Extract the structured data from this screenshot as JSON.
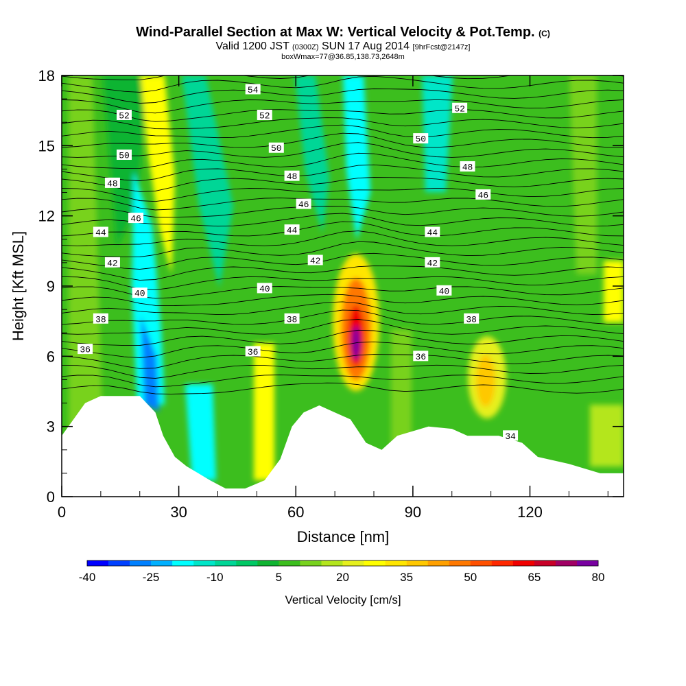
{
  "header": {
    "title_main": "Wind-Parallel Section at Max W: Vertical Velocity & Pot.Temp.",
    "title_tag": "(C)",
    "subtitle_a": "Valid 1200 JST",
    "subtitle_b": "(0300Z)",
    "subtitle_c": "SUN 17 Aug 2014",
    "subtitle_d": "[9hrFcst@2147z]",
    "subtitle_line2": "boxWmax=77@36.85,138.73,2648m"
  },
  "chart_data": {
    "type": "heatmap",
    "xlabel": "Distance [nm]",
    "ylabel": "Height [Kft MSL]",
    "xlim": [
      0,
      144
    ],
    "ylim": [
      0,
      18
    ],
    "x_ticks": [
      0,
      30,
      60,
      90,
      120
    ],
    "y_ticks": [
      0,
      3,
      6,
      9,
      12,
      15,
      18
    ],
    "colorbar": {
      "label": "Vertical Velocity [cm/s]",
      "tick_labels": [
        "-40",
        "-25",
        "-10",
        "5",
        "20",
        "35",
        "50",
        "65",
        "80"
      ],
      "min": -40,
      "max": 80,
      "step": 5,
      "colors": [
        "#0000ff",
        "#0040ff",
        "#0080ff",
        "#00b0ff",
        "#00ffff",
        "#00e6c8",
        "#00d696",
        "#00c864",
        "#10b432",
        "#3cbe1e",
        "#78d21e",
        "#b4e61e",
        "#e6f01e",
        "#ffff00",
        "#ffe600",
        "#ffc800",
        "#ffa000",
        "#ff7800",
        "#ff5000",
        "#ff2800",
        "#f00000",
        "#c80028",
        "#a00064",
        "#7800a0"
      ]
    },
    "terrain_profile": [
      {
        "x": 0,
        "h": 2.6
      },
      {
        "x": 3,
        "h": 3.3
      },
      {
        "x": 6,
        "h": 4.0
      },
      {
        "x": 10,
        "h": 4.3
      },
      {
        "x": 15,
        "h": 4.3
      },
      {
        "x": 20,
        "h": 4.3
      },
      {
        "x": 24,
        "h": 3.6
      },
      {
        "x": 26,
        "h": 2.6
      },
      {
        "x": 29,
        "h": 1.7
      },
      {
        "x": 32,
        "h": 1.3
      },
      {
        "x": 35,
        "h": 1.0
      },
      {
        "x": 38,
        "h": 0.7
      },
      {
        "x": 42,
        "h": 0.35
      },
      {
        "x": 47,
        "h": 0.35
      },
      {
        "x": 52,
        "h": 0.7
      },
      {
        "x": 56,
        "h": 1.6
      },
      {
        "x": 59,
        "h": 3.0
      },
      {
        "x": 62,
        "h": 3.6
      },
      {
        "x": 66,
        "h": 3.9
      },
      {
        "x": 70,
        "h": 3.6
      },
      {
        "x": 74,
        "h": 3.3
      },
      {
        "x": 78,
        "h": 2.3
      },
      {
        "x": 82,
        "h": 2.0
      },
      {
        "x": 86,
        "h": 2.6
      },
      {
        "x": 94,
        "h": 3.0
      },
      {
        "x": 100,
        "h": 2.9
      },
      {
        "x": 104,
        "h": 2.6
      },
      {
        "x": 112,
        "h": 2.6
      },
      {
        "x": 118,
        "h": 2.3
      },
      {
        "x": 122,
        "h": 1.7
      },
      {
        "x": 130,
        "h": 1.4
      },
      {
        "x": 138,
        "h": 1.0
      },
      {
        "x": 144,
        "h": 1.0
      }
    ],
    "theta_labels": [
      {
        "value": "54",
        "x": 49,
        "h": 17.4
      },
      {
        "value": "52",
        "x": 16,
        "h": 16.3
      },
      {
        "value": "52",
        "x": 52,
        "h": 16.3
      },
      {
        "value": "52",
        "x": 102,
        "h": 16.6
      },
      {
        "value": "50",
        "x": 16,
        "h": 14.6
      },
      {
        "value": "50",
        "x": 55,
        "h": 14.9
      },
      {
        "value": "50",
        "x": 92,
        "h": 15.3
      },
      {
        "value": "48",
        "x": 13,
        "h": 13.4
      },
      {
        "value": "48",
        "x": 59,
        "h": 13.7
      },
      {
        "value": "48",
        "x": 104,
        "h": 14.1
      },
      {
        "value": "46",
        "x": 19,
        "h": 11.9
      },
      {
        "value": "46",
        "x": 62,
        "h": 12.5
      },
      {
        "value": "46",
        "x": 108,
        "h": 12.9
      },
      {
        "value": "44",
        "x": 10,
        "h": 11.3
      },
      {
        "value": "44",
        "x": 59,
        "h": 11.4
      },
      {
        "value": "44",
        "x": 95,
        "h": 11.3
      },
      {
        "value": "42",
        "x": 13,
        "h": 10.0
      },
      {
        "value": "42",
        "x": 65,
        "h": 10.1
      },
      {
        "value": "42",
        "x": 95,
        "h": 10.0
      },
      {
        "value": "40",
        "x": 20,
        "h": 8.7
      },
      {
        "value": "40",
        "x": 52,
        "h": 8.9
      },
      {
        "value": "40",
        "x": 98,
        "h": 8.8
      },
      {
        "value": "38",
        "x": 10,
        "h": 7.6
      },
      {
        "value": "38",
        "x": 59,
        "h": 7.6
      },
      {
        "value": "38",
        "x": 105,
        "h": 7.6
      },
      {
        "value": "36",
        "x": 6,
        "h": 6.3
      },
      {
        "value": "36",
        "x": 49,
        "h": 6.2
      },
      {
        "value": "36",
        "x": 92,
        "h": 6.0
      },
      {
        "value": "34",
        "x": 115,
        "h": 2.6
      }
    ]
  }
}
